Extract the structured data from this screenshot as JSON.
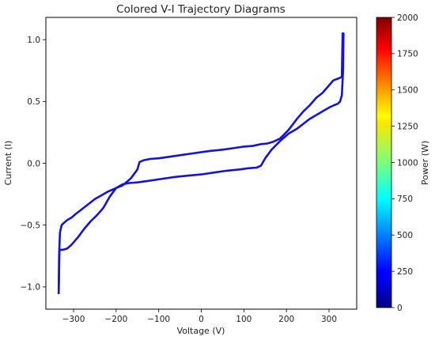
{
  "chart_data": {
    "type": "line",
    "title": "Colored V-I Trajectory Diagrams",
    "xlabel": "Voltage (V)",
    "ylabel": "Current (I)",
    "xlim": [
      -365,
      365
    ],
    "ylim": [
      -1.18,
      1.18
    ],
    "xticks": [
      -300,
      -200,
      -100,
      0,
      100,
      200,
      300
    ],
    "xtick_labels": [
      "−300",
      "−200",
      "−100",
      "0",
      "100",
      "200",
      "300"
    ],
    "yticks": [
      -1.0,
      -0.5,
      0.0,
      0.5,
      1.0
    ],
    "ytick_labels": [
      "−1.0",
      "−0.5",
      "0.0",
      "0.5",
      "1.0"
    ],
    "grid": false,
    "colorbar": {
      "label": "Power (W)",
      "range": [
        0,
        2000
      ],
      "ticks": [
        0,
        250,
        500,
        750,
        1000,
        1250,
        1500,
        1750,
        2000
      ],
      "tick_labels": [
        "0",
        "250",
        "500",
        "750",
        "1000",
        "1250",
        "1500",
        "1750",
        "2000"
      ],
      "colormap": "jet"
    },
    "line_color": "#1414d2",
    "series": [
      {
        "x": [
          332,
          330,
          325,
          310,
          300,
          285,
          270,
          255,
          240,
          225,
          205,
          185,
          170,
          155,
          140,
          120,
          100,
          80,
          50,
          20,
          0,
          -20,
          -50,
          -80,
          -100,
          -120,
          -135,
          -145,
          -150,
          -165,
          -185,
          -200,
          -220,
          -235,
          -250,
          -265,
          -280,
          -295,
          -305,
          -315,
          -322,
          -328,
          -332,
          -334,
          -335
        ],
        "y": [
          1.05,
          0.7,
          0.69,
          0.67,
          0.63,
          0.57,
          0.53,
          0.47,
          0.42,
          0.36,
          0.27,
          0.2,
          0.175,
          0.16,
          0.155,
          0.14,
          0.135,
          0.125,
          0.11,
          0.1,
          0.09,
          0.08,
          0.065,
          0.05,
          0.04,
          0.035,
          0.025,
          0.01,
          -0.05,
          -0.12,
          -0.18,
          -0.2,
          -0.23,
          -0.26,
          -0.29,
          -0.33,
          -0.37,
          -0.41,
          -0.44,
          -0.46,
          -0.48,
          -0.5,
          -0.56,
          -0.75,
          -1.05
        ]
      },
      {
        "x": [
          -335,
          -333,
          -325,
          -315,
          -305,
          -290,
          -275,
          -260,
          -245,
          -230,
          -215,
          -200,
          -185,
          -170,
          -150,
          -130,
          -110,
          -90,
          -60,
          -30,
          0,
          30,
          60,
          90,
          110,
          130,
          140,
          150,
          165,
          185,
          205,
          225,
          240,
          255,
          270,
          285,
          300,
          312,
          320,
          326,
          330,
          333,
          334
        ],
        "y": [
          -1.05,
          -0.7,
          -0.7,
          -0.69,
          -0.66,
          -0.6,
          -0.53,
          -0.47,
          -0.42,
          -0.36,
          -0.27,
          -0.2,
          -0.17,
          -0.16,
          -0.155,
          -0.145,
          -0.135,
          -0.125,
          -0.11,
          -0.1,
          -0.09,
          -0.075,
          -0.06,
          -0.05,
          -0.04,
          -0.035,
          -0.02,
          0.04,
          0.11,
          0.18,
          0.24,
          0.28,
          0.32,
          0.36,
          0.39,
          0.42,
          0.45,
          0.47,
          0.48,
          0.5,
          0.55,
          0.75,
          1.05
        ]
      }
    ]
  }
}
